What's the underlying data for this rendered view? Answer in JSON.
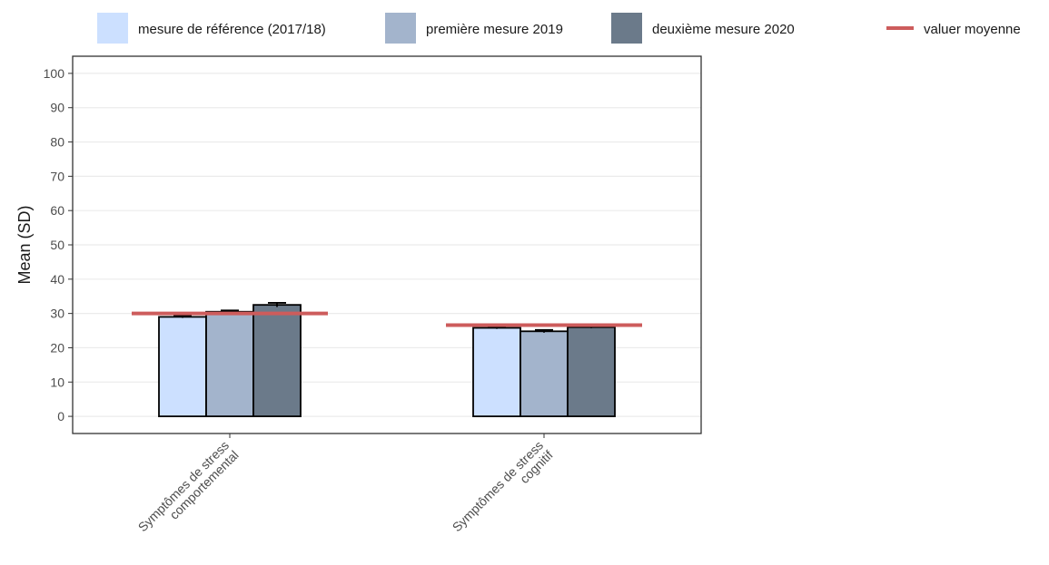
{
  "chart_data": {
    "type": "bar",
    "ylabel": "Mean (SD)",
    "ylim": [
      -5,
      105
    ],
    "y_ticks": [
      "0",
      "10",
      "20",
      "30",
      "40",
      "50",
      "60",
      "70",
      "80",
      "90",
      "100"
    ],
    "grid": true,
    "legend_position": "top",
    "categories": [
      [
        "Symptômes de stress",
        "comportemental"
      ],
      [
        "Symptômes de stress",
        "cognitif"
      ]
    ],
    "series": [
      {
        "name": "mesure de référence (2017/18)",
        "color": "#cce0ff",
        "values": [
          29.0,
          25.8
        ],
        "errors": [
          0.3,
          0.3
        ]
      },
      {
        "name": "première mesure 2019",
        "color": "#a3b4cc",
        "values": [
          30.5,
          24.8
        ],
        "errors": [
          0.4,
          0.4
        ]
      },
      {
        "name": "deuxième mesure 2020",
        "color": "#6b7a8a",
        "values": [
          32.5,
          26.0
        ],
        "errors": [
          0.6,
          0.3
        ]
      }
    ],
    "mean_line": {
      "name": "valuer moyenne",
      "color": "#cd5c5c",
      "values": [
        30.0,
        26.6
      ]
    }
  }
}
